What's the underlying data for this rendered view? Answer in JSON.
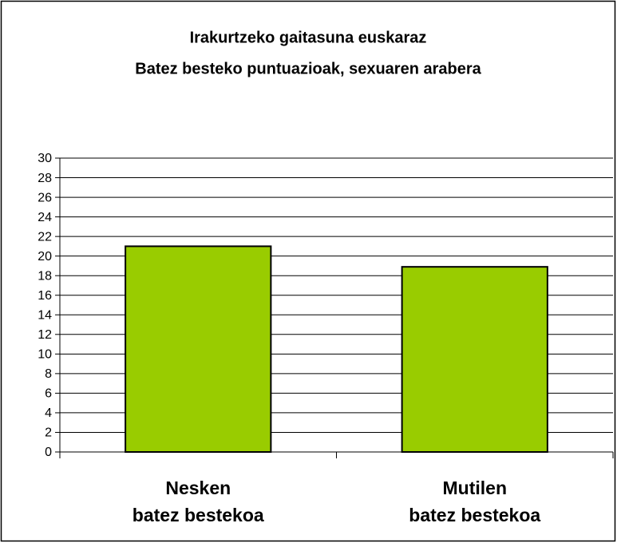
{
  "chart_data": {
    "type": "bar",
    "title": "Irakurtzeko gaitasuna euskaraz",
    "subtitle": "Batez besteko puntuazioak, sexuaren arabera",
    "categories": [
      "Nesken\nbatez bestekoa",
      "Mutilen\nbatez bestekoa"
    ],
    "values": [
      21,
      18.9
    ],
    "color": "#99cc00",
    "ylim": [
      0,
      30
    ],
    "yticks": [
      0,
      2,
      4,
      6,
      8,
      10,
      12,
      14,
      16,
      18,
      20,
      22,
      24,
      26,
      28,
      30
    ],
    "grid": true
  }
}
